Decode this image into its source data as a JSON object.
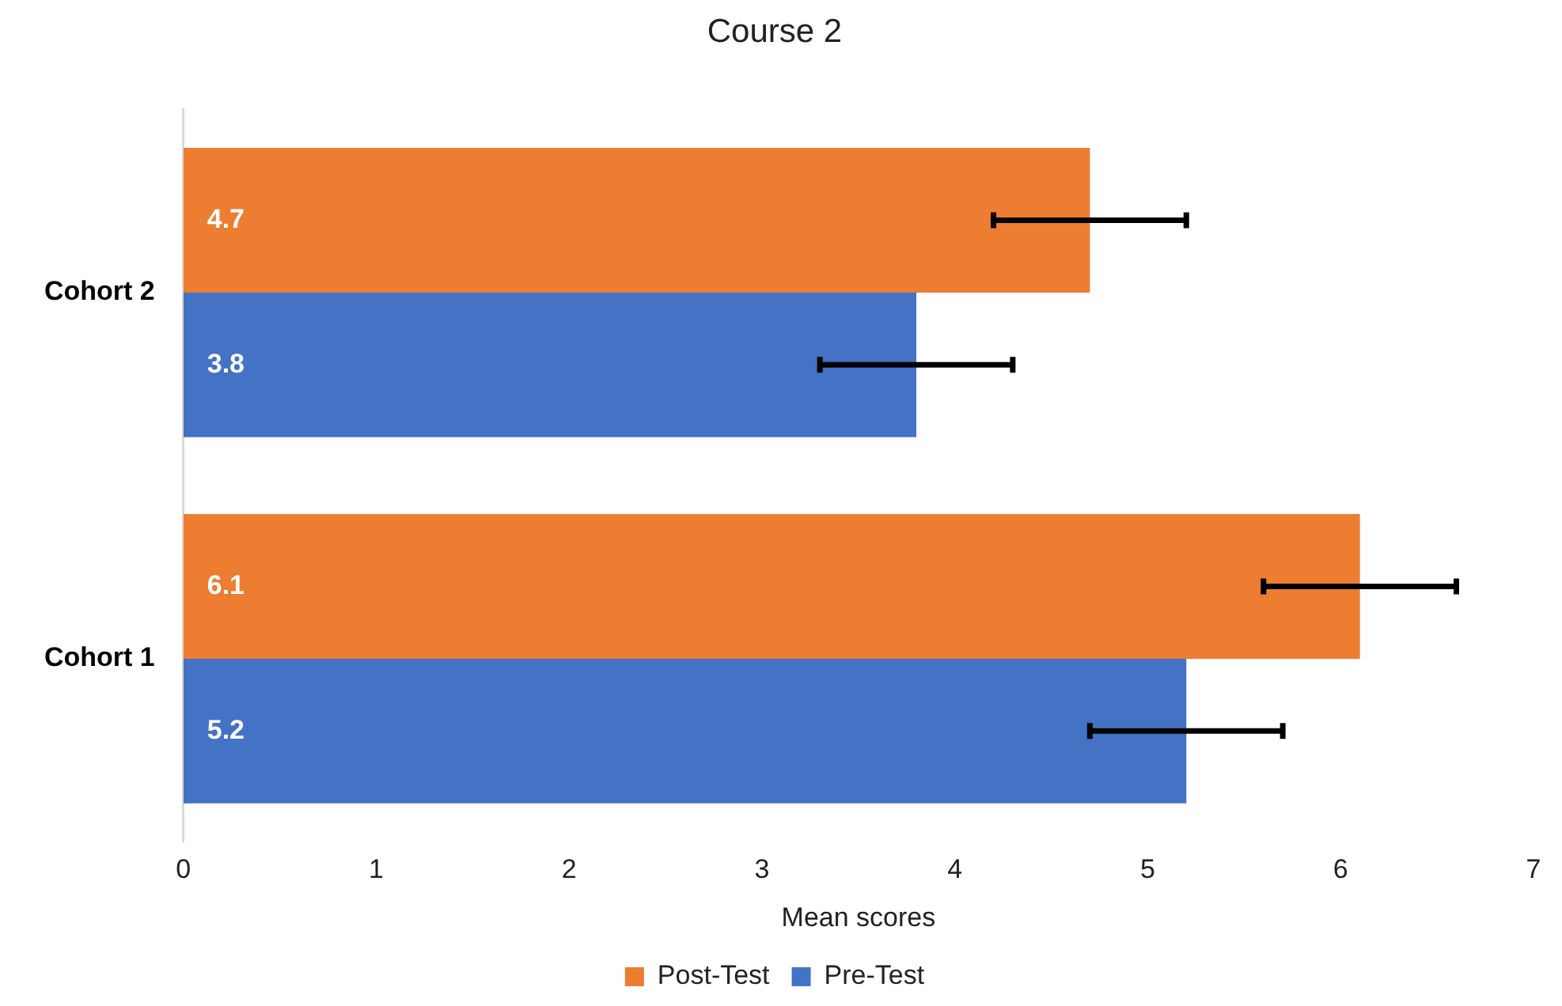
{
  "chart_data": {
    "type": "bar",
    "orientation": "horizontal",
    "title": "Course 2",
    "xlabel": "Mean scores",
    "categories": [
      "Cohort 2",
      "Cohort 1"
    ],
    "series": [
      {
        "name": "Post-Test",
        "color": "#ed7d31",
        "values": [
          4.7,
          6.1
        ],
        "errors": [
          0.5,
          0.5
        ]
      },
      {
        "name": "Pre-Test",
        "color": "#4472c4",
        "values": [
          3.8,
          5.2
        ],
        "errors": [
          0.5,
          0.5
        ]
      }
    ],
    "xlim": [
      0,
      7
    ],
    "xticks": [
      0,
      1,
      2,
      3,
      4,
      5,
      6,
      7
    ],
    "grid": false,
    "legend": "bottom",
    "data_labels": true
  }
}
